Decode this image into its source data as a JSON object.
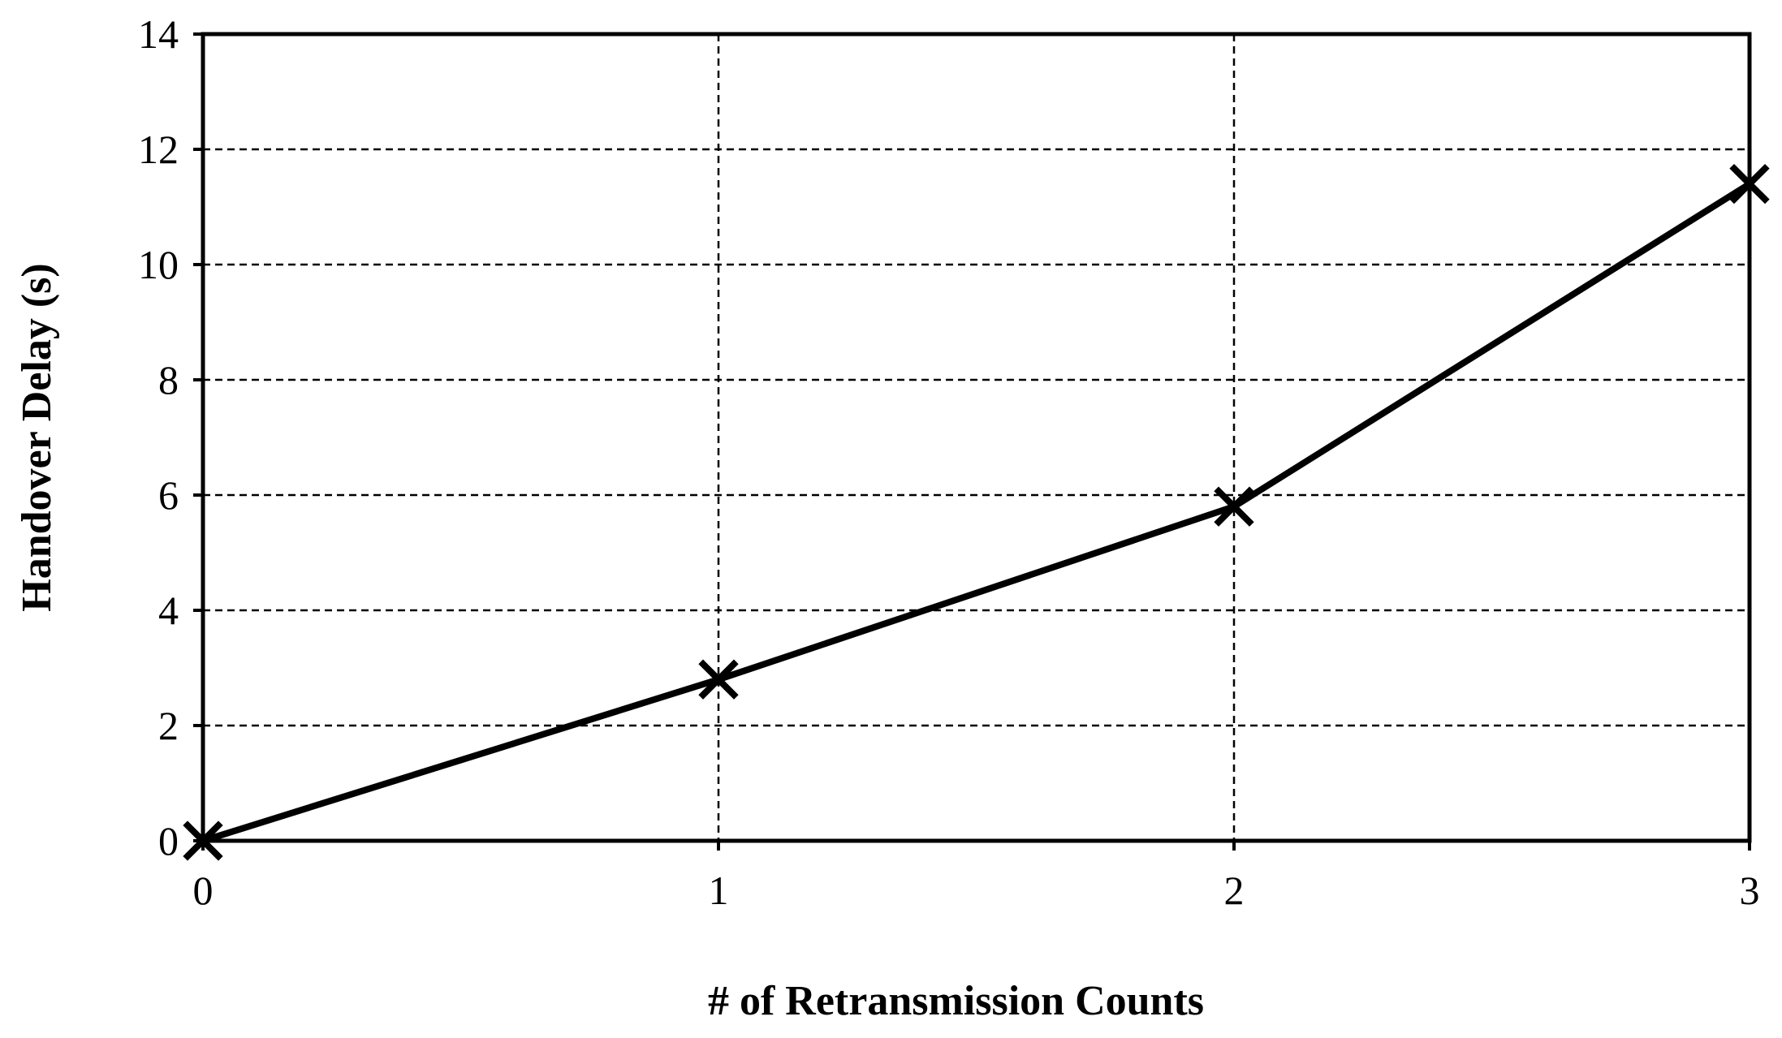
{
  "chart_data": {
    "type": "line",
    "title": "",
    "xlabel": "# of Retransmission Counts",
    "ylabel": "Handover Delay  (s)",
    "x": [
      0,
      1,
      2,
      3
    ],
    "xlim": [
      0,
      3
    ],
    "ylim": [
      0,
      14
    ],
    "xticks": [
      "0",
      "1",
      "2",
      "3"
    ],
    "yticks": [
      "0",
      "2",
      "4",
      "6",
      "8",
      "10",
      "12",
      "14"
    ],
    "grid": true,
    "legend": "none",
    "series": [
      {
        "values": [
          0,
          2.8,
          5.8,
          11.4
        ],
        "marker": "x",
        "color": "#000000"
      }
    ]
  }
}
